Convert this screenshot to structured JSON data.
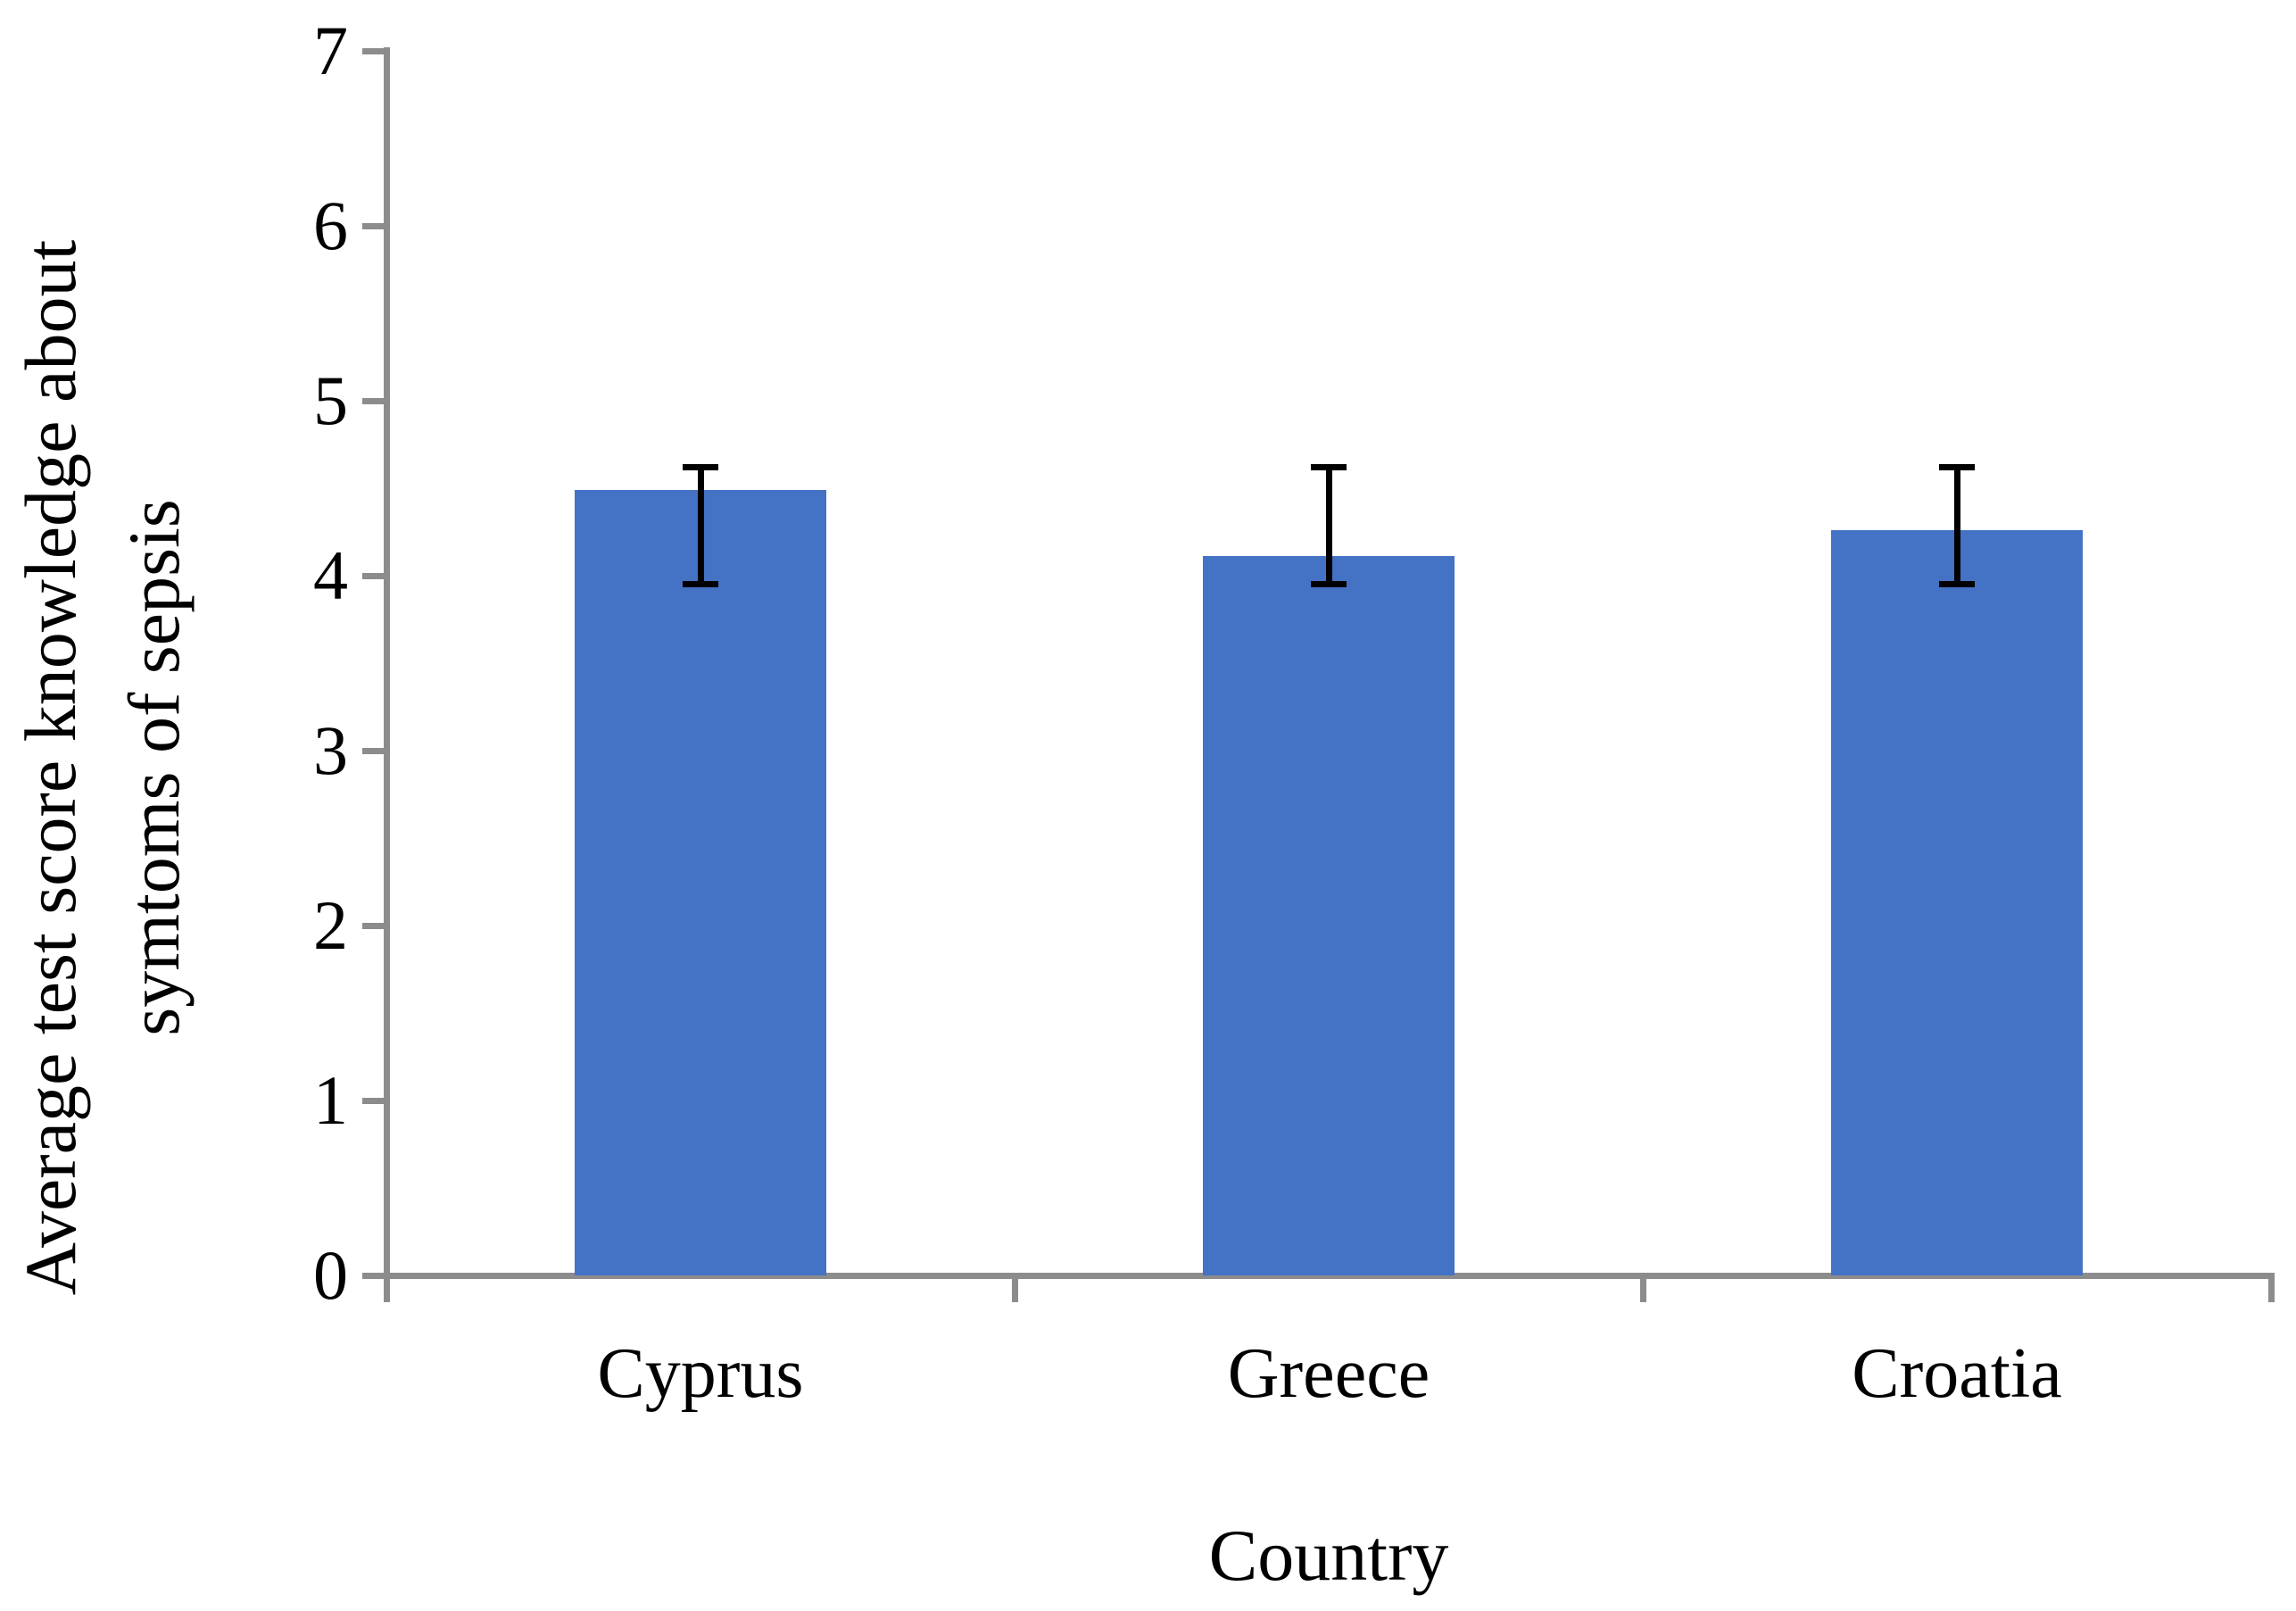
{
  "chart_data": {
    "type": "bar",
    "title": "",
    "categories": [
      "Cyprus",
      "Greece",
      "Croatia"
    ],
    "values": [
      4.49,
      4.11,
      4.26
    ],
    "error_bars": {
      "low": [
        3.95,
        3.95,
        3.95
      ],
      "high": [
        4.62,
        4.62,
        4.62
      ]
    },
    "xlabel": "Country",
    "ylabel": "Average test score knowledge about symtoms of sepsis",
    "ylabel_lines": [
      "Average test score knowledge about",
      "symtoms of sepsis"
    ],
    "yticks": [
      0,
      1,
      2,
      3,
      4,
      5,
      6,
      7
    ],
    "ylim": [
      0,
      7
    ],
    "grid": false,
    "legend": null,
    "colors": {
      "bar": "#4472C4",
      "axis": "#8C8C8C",
      "error_bar": "#000000",
      "text": "#000000",
      "background": "#FFFFFF"
    }
  }
}
